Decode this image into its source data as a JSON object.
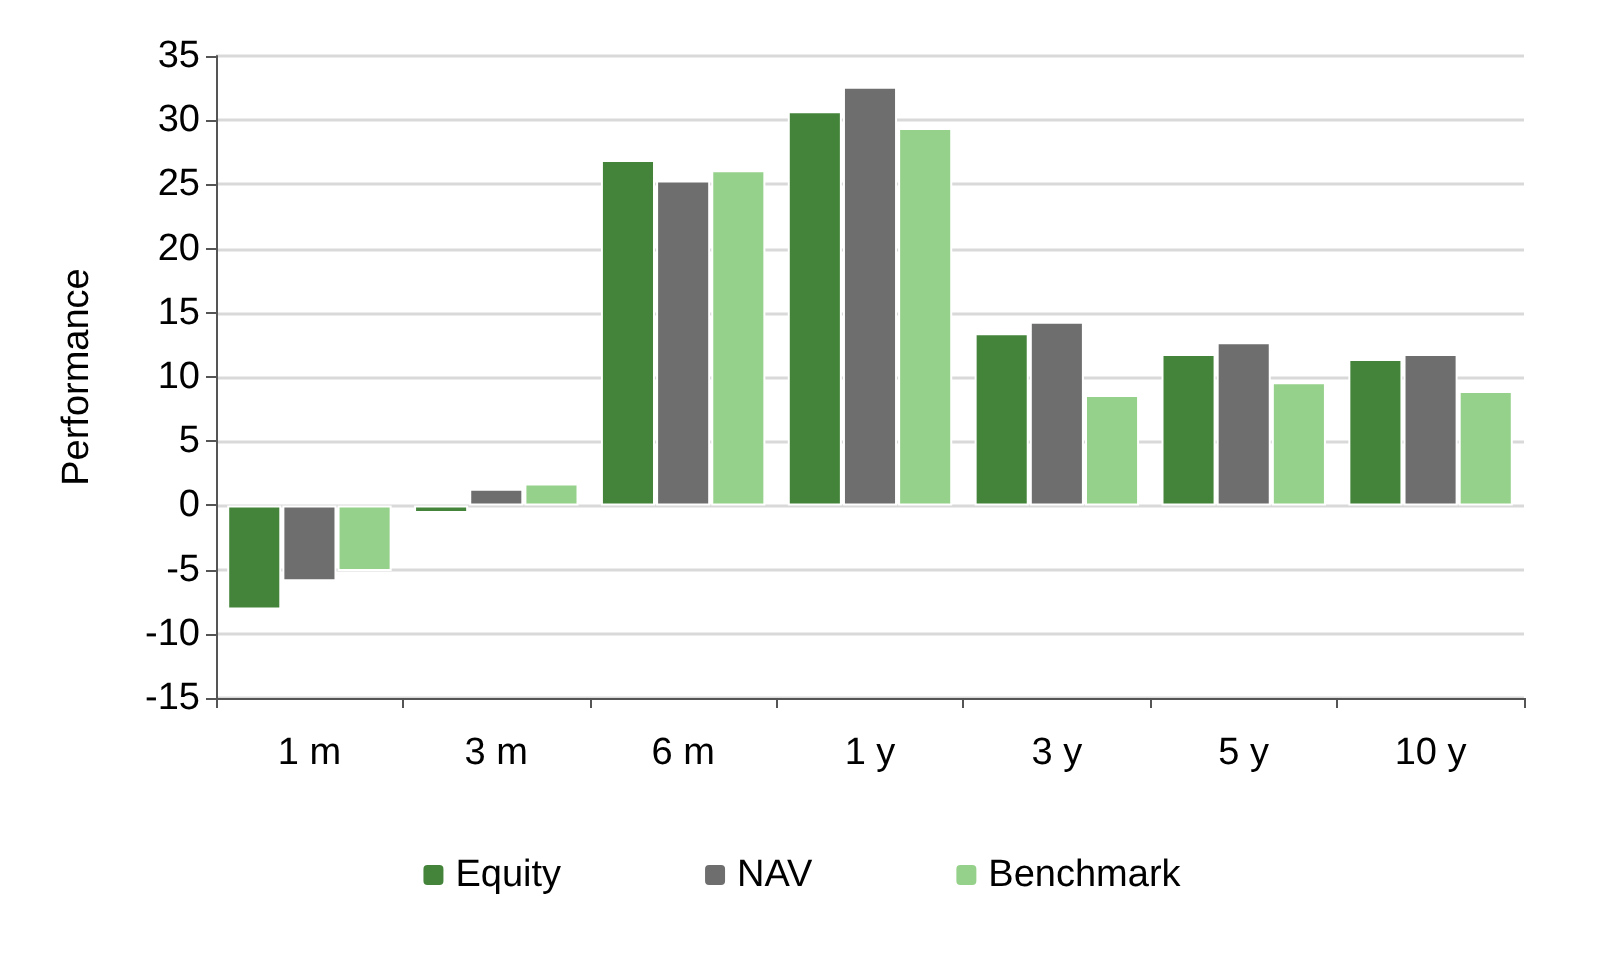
{
  "chart_data": {
    "type": "bar",
    "ylabel": "Performance",
    "categories": [
      "1 m",
      "3 m",
      "6 m",
      "1 y",
      "3 y",
      "5 y",
      "10 y"
    ],
    "series": [
      {
        "name": "Equity",
        "color": "#43843a",
        "values": [
          -8.1,
          -0.6,
          26.9,
          30.7,
          13.4,
          11.8,
          11.4
        ]
      },
      {
        "name": "NAV",
        "color": "#6e6e6e",
        "values": [
          -5.9,
          1.3,
          25.3,
          32.6,
          14.3,
          12.7,
          11.8
        ]
      },
      {
        "name": "Benchmark",
        "color": "#96d18b",
        "values": [
          -5.1,
          1.7,
          26.1,
          29.4,
          8.6,
          9.6,
          8.9
        ]
      }
    ],
    "ylim": [
      -15,
      35
    ],
    "yticks": [
      -15,
      -10,
      -5,
      0,
      5,
      10,
      15,
      20,
      25,
      30,
      35
    ],
    "grid": "y",
    "legend": "bottom"
  }
}
